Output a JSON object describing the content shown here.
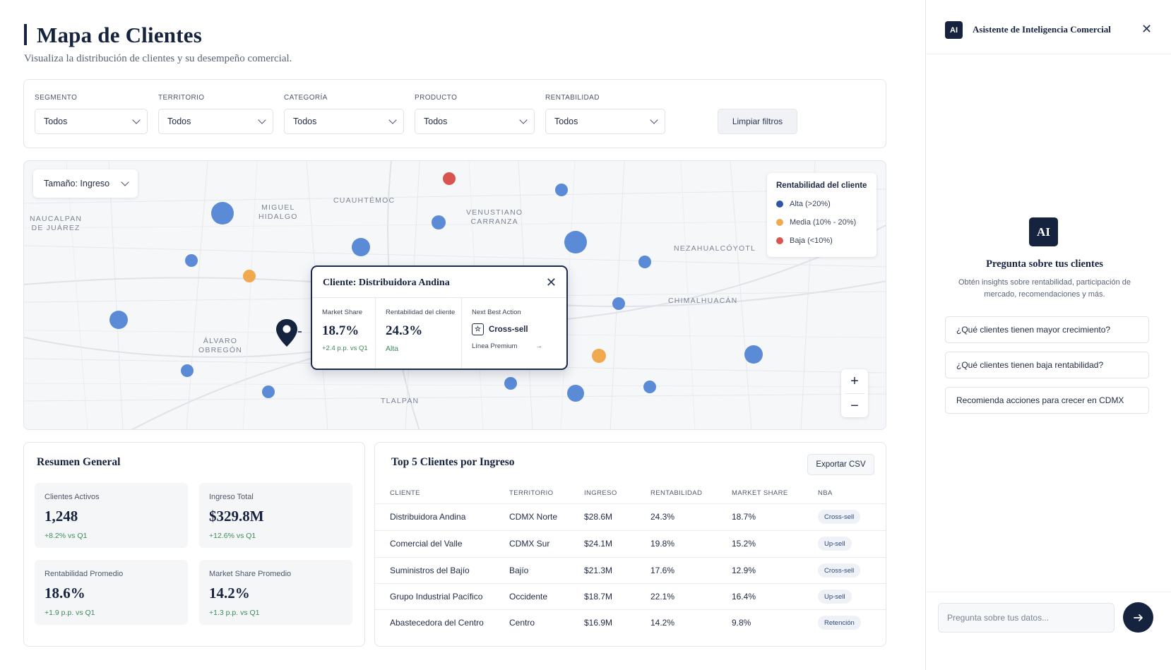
{
  "header": {
    "title": "Mapa de Clientes",
    "subtitle": "Visualiza la distribución de clientes y su desempeño comercial."
  },
  "filters": {
    "items": [
      {
        "label": "SEGMENTO",
        "value": "Todos"
      },
      {
        "label": "TERRITORIO",
        "value": "Todos"
      },
      {
        "label": "CATEGORÍA",
        "value": "Todos"
      },
      {
        "label": "PRODUCTO",
        "value": "Todos"
      },
      {
        "label": "RENTABILIDAD",
        "value": "Todos"
      }
    ],
    "clear_label": "Limpiar filtros"
  },
  "map": {
    "size_select": "Tamaño: Ingreso",
    "areas": [
      "NAUCALPAN\nDE JUÁREZ",
      "MIGUEL\nHIDALGO",
      "CUAUHTÉMOC",
      "VENUSTIANO\nCARRANZA",
      "NEZAHUALCÓYOTL",
      "CHIMALHUACÁN",
      "ÁLVARO\nOBREGÓN",
      "TLALPAN"
    ],
    "legend": {
      "title": "Rentabilidad del cliente",
      "items": [
        {
          "label": "Alta (>20%)",
          "color": "#2f55a4"
        },
        {
          "label": "Media (10% - 20%)",
          "color": "#f0a94e"
        },
        {
          "label": "Baja (<10%)",
          "color": "#d9544f"
        }
      ]
    },
    "zoom": {
      "in": "+",
      "out": "−"
    },
    "colors": {
      "alta_marker": "#5b8ad6",
      "media_marker": "#f0a94e",
      "baja_marker": "#d9544f"
    }
  },
  "popup": {
    "title": "Cliente: Distribuidora Andina",
    "market_share": {
      "label": "Market Share",
      "value": "18.7%",
      "delta": "+2.4 p.p. vs Q1"
    },
    "rentabilidad": {
      "label": "Rentabilidad del cliente",
      "value": "24.3%",
      "level": "Alta"
    },
    "nba": {
      "label": "Next Best Action",
      "action": "Cross-sell",
      "detail": "Línea Premium"
    }
  },
  "summary": {
    "title": "Resumen General",
    "kpis": [
      {
        "label": "Clientes Activos",
        "value": "1,248",
        "delta": "+8.2% vs Q1"
      },
      {
        "label": "Ingreso Total",
        "value": "$329.8M",
        "delta": "+12.6% vs Q1"
      },
      {
        "label": "Rentabilidad Promedio",
        "value": "18.6%",
        "delta": "+1.9 p.p. vs Q1"
      },
      {
        "label": "Market Share Promedio",
        "value": "14.2%",
        "delta": "+1.3 p.p. vs Q1"
      }
    ]
  },
  "top_clients": {
    "title": "Top 5 Clientes por Ingreso",
    "export_label": "Exportar CSV",
    "columns": [
      "CLIENTE",
      "TERRITORIO",
      "INGRESO",
      "RENTABILIDAD",
      "MARKET SHARE",
      "NBA"
    ],
    "rows": [
      [
        "Distribuidora Andina",
        "CDMX Norte",
        "$28.6M",
        "24.3%",
        "18.7%",
        "Cross-sell"
      ],
      [
        "Comercial del Valle",
        "CDMX Sur",
        "$24.1M",
        "19.8%",
        "15.2%",
        "Up-sell"
      ],
      [
        "Suministros del Bajío",
        "Bajío",
        "$21.3M",
        "17.6%",
        "12.9%",
        "Cross-sell"
      ],
      [
        "Grupo Industrial Pacífico",
        "Occidente",
        "$18.7M",
        "22.1%",
        "16.4%",
        "Up-sell"
      ],
      [
        "Abastecedora del Centro",
        "Centro",
        "$16.9M",
        "14.2%",
        "9.8%",
        "Retención"
      ]
    ]
  },
  "assistant": {
    "badge": "AI",
    "title": "Asistente de Inteligencia Comercial",
    "heading": "Pregunta sobre tus clientes",
    "description": "Obtén insights sobre rentabilidad, participación de mercado, recomendaciones y más.",
    "suggestions": [
      "¿Qué clientes tienen mayor crecimiento?",
      "¿Qué clientes tienen baja rentabilidad?",
      "Recomienda acciones para crecer en CDMX"
    ],
    "input_placeholder": "Pregunta sobre tus datos..."
  }
}
